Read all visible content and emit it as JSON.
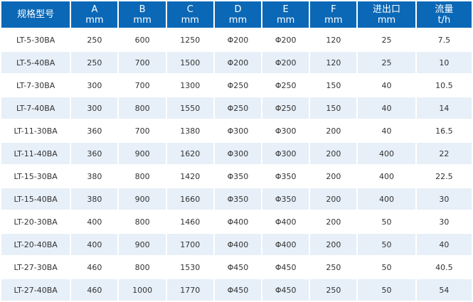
{
  "header": {
    "model": "规格型号",
    "columns": [
      {
        "label": "A",
        "unit": "mm"
      },
      {
        "label": "B",
        "unit": "mm"
      },
      {
        "label": "C",
        "unit": "mm"
      },
      {
        "label": "D",
        "unit": "mm"
      },
      {
        "label": "E",
        "unit": "mm"
      },
      {
        "label": "F",
        "unit": "mm"
      },
      {
        "label": "进出口",
        "unit": "mm"
      },
      {
        "label": "流量",
        "unit": "t/h"
      }
    ]
  },
  "rows": [
    [
      "LT-5-30BA",
      "250",
      "600",
      "1250",
      "Φ200",
      "Φ200",
      "120",
      "25",
      "7.5"
    ],
    [
      "LT-5-40BA",
      "250",
      "700",
      "1500",
      "Φ200",
      "Φ200",
      "120",
      "25",
      "10"
    ],
    [
      "LT-7-30BA",
      "300",
      "700",
      "1300",
      "Φ250",
      "Φ250",
      "150",
      "40",
      "10.5"
    ],
    [
      "LT-7-40BA",
      "300",
      "800",
      "1550",
      "Φ250",
      "Φ250",
      "150",
      "40",
      "14"
    ],
    [
      "LT-11-30BA",
      "360",
      "700",
      "1380",
      "Φ300",
      "Φ300",
      "200",
      "40",
      "16.5"
    ],
    [
      "LT-11-40BA",
      "360",
      "900",
      "1620",
      "Φ300",
      "Φ300",
      "200",
      "400",
      "22"
    ],
    [
      "LT-15-30BA",
      "380",
      "800",
      "1420",
      "Φ350",
      "Φ350",
      "200",
      "400",
      "22.5"
    ],
    [
      "LT-15-40BA",
      "380",
      "900",
      "1660",
      "Φ350",
      "Φ350",
      "200",
      "400",
      "30"
    ],
    [
      "LT-20-30BA",
      "400",
      "800",
      "1460",
      "Φ400",
      "Φ400",
      "200",
      "50",
      "30"
    ],
    [
      "LT-20-40BA",
      "400",
      "900",
      "1700",
      "Φ400",
      "Φ400",
      "200",
      "50",
      "40"
    ],
    [
      "LT-27-30BA",
      "460",
      "800",
      "1530",
      "Φ450",
      "Φ450",
      "250",
      "50",
      "40.5"
    ],
    [
      "LT-27-40BA",
      "460",
      "1000",
      "1770",
      "Φ450",
      "Φ450",
      "250",
      "50",
      "54"
    ]
  ],
  "colors": {
    "header_bg": "#0b68b6",
    "header_text": "#ffffff",
    "stripe": "#e7eff8",
    "row": "#ffffff",
    "cell_text": "#333333"
  }
}
